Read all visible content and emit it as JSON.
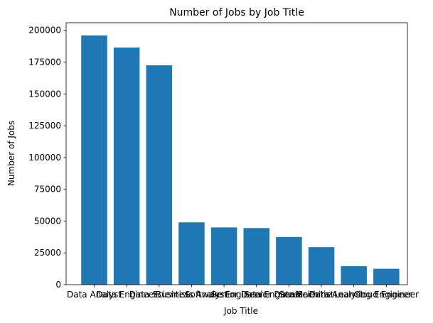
{
  "chart_data": {
    "type": "bar",
    "title": "Number of Jobs by Job Title",
    "xlabel": "Job Title",
    "ylabel": "Number of Jobs",
    "categories": [
      "Data Analyst",
      "Data Engineer",
      "Data Scientist",
      "Business Analyst",
      "Software Engineer",
      "Senior Data Engineer",
      "Senior Data Scientist",
      "Senior Data Analyst",
      "Machine Learning Engineer",
      "Cloud Engineer"
    ],
    "values": [
      196000,
      186500,
      172500,
      49000,
      45000,
      44500,
      37500,
      29500,
      14500,
      12500
    ],
    "ylim": [
      0,
      206000
    ],
    "yticks": [
      0,
      25000,
      50000,
      75000,
      100000,
      125000,
      150000,
      175000,
      200000
    ],
    "grid": false,
    "bar_color": "#1f77b4"
  }
}
